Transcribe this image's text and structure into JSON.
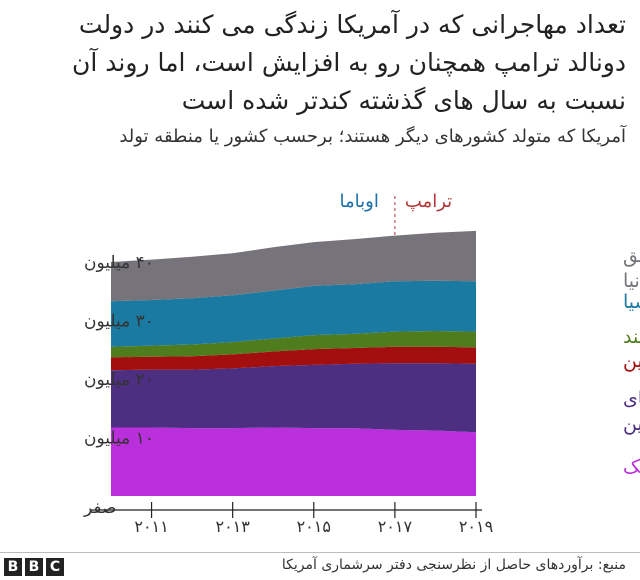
{
  "title": "تعداد مهاجرانی که در آمریکا زندگی می کنند در دولت دونالد ترامپ همچنان رو به افزایش است، اما روند آن نسبت به سال های گذشته کندتر شده است",
  "subtitle": "آمریکا که متولد کشورهای دیگر هستند؛ برحسب کشور یا منطقه تولد",
  "source": "منبع:  برآوردهای حاصل از نظرسنجی دفتر سرشماری آمریکا",
  "logo": [
    "B",
    "B",
    "C"
  ],
  "annotations": {
    "obama": "اوباما",
    "trump": "ترامپ"
  },
  "colors": {
    "mexico": "#b92fdb",
    "latam": "#4d2f82",
    "china": "#a30f0f",
    "india": "#4f7d1d",
    "asia": "#1b7aa1",
    "world": "#76747a",
    "divider": "#b33636",
    "obama_text": "#1b6fa6",
    "trump_text": "#b33636"
  },
  "chart_data": {
    "type": "area",
    "stacked": true,
    "x": [
      2010,
      2011,
      2012,
      2013,
      2014,
      2015,
      2016,
      2017,
      2018,
      2019
    ],
    "x_ticks": [
      {
        "value": 2011,
        "label": "۲۰۱۱"
      },
      {
        "value": 2013,
        "label": "۲۰۱۳"
      },
      {
        "value": 2015,
        "label": "۲۰۱۵"
      },
      {
        "value": 2017,
        "label": "۲۰۱۷"
      },
      {
        "value": 2019,
        "label": "۲۰۱۹"
      }
    ],
    "y_ticks": [
      {
        "value": 0,
        "label": "صفر"
      },
      {
        "value": 10,
        "label": "۱۰ میلیون"
      },
      {
        "value": 20,
        "label": "۲۰ میلیون"
      },
      {
        "value": 30,
        "label": "۳۰ میلیون"
      },
      {
        "value": 40,
        "label": "۴۰ میلیون"
      }
    ],
    "ylim": [
      0,
      47
    ],
    "xlim": [
      2010,
      2019
    ],
    "divider_x": 2017,
    "series": [
      {
        "key": "mexico",
        "name": "مکزیک",
        "values": [
          11.7,
          11.7,
          11.6,
          11.6,
          11.7,
          11.6,
          11.6,
          11.3,
          11.2,
          10.9
        ]
      },
      {
        "key": "latam",
        "name": "بقیه آمریکای لاتین",
        "values": [
          9.8,
          9.9,
          10.0,
          10.2,
          10.5,
          10.8,
          11.0,
          11.4,
          11.5,
          11.7
        ]
      },
      {
        "key": "china",
        "name": "چین",
        "values": [
          2.2,
          2.2,
          2.3,
          2.4,
          2.5,
          2.7,
          2.7,
          2.8,
          2.8,
          2.8
        ]
      },
      {
        "key": "india",
        "name": "هند",
        "values": [
          1.8,
          1.9,
          2.0,
          2.1,
          2.2,
          2.4,
          2.4,
          2.6,
          2.7,
          2.7
        ]
      },
      {
        "key": "asia",
        "name": "بقیه آسیا",
        "values": [
          7.8,
          7.8,
          7.9,
          8.0,
          8.2,
          8.4,
          8.5,
          8.6,
          8.6,
          8.6
        ]
      },
      {
        "key": "world",
        "name": "بقیه مناطق دنیا",
        "values": [
          6.7,
          6.9,
          7.1,
          7.2,
          7.4,
          7.5,
          7.7,
          7.8,
          8.2,
          8.6
        ]
      }
    ],
    "labels": [
      {
        "key": "world",
        "lines": [
          "بقیه مناطق",
          "دنیا"
        ],
        "color": "#76747a"
      },
      {
        "key": "asia",
        "lines": [
          "بقیه آسیا"
        ],
        "color": "#1b7aa1"
      },
      {
        "key": "india",
        "lines": [
          "هند"
        ],
        "color": "#4f7d1d"
      },
      {
        "key": "china",
        "lines": [
          "چین"
        ],
        "color": "#a30f0f"
      },
      {
        "key": "latam",
        "lines": [
          "بقیه آمریکای",
          "لاتین"
        ],
        "color": "#4d2f82"
      },
      {
        "key": "mexico",
        "lines": [
          "مکزیک"
        ],
        "color": "#b92fdb"
      }
    ]
  }
}
